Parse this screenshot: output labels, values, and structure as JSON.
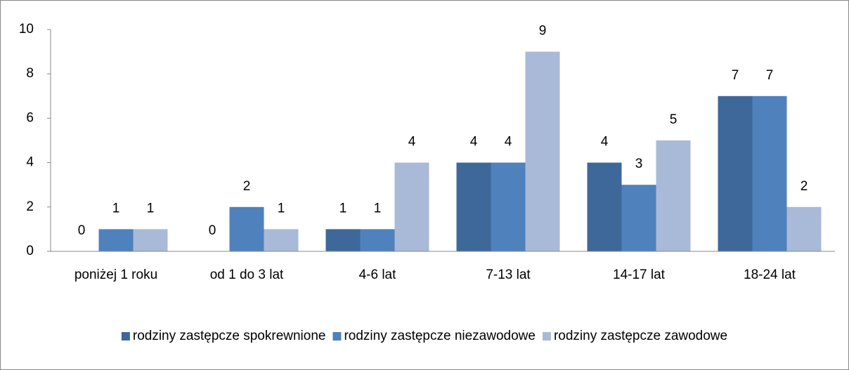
{
  "chart_data": {
    "type": "bar",
    "categories": [
      "poniżej 1 roku",
      "od 1 do 3 lat",
      "4-6 lat",
      "7-13 lat",
      "14-17 lat",
      "18-24 lat"
    ],
    "series": [
      {
        "name": "rodziny zastępcze spokrewnione",
        "color": "#3f689a",
        "values": [
          0,
          0,
          1,
          4,
          4,
          7
        ]
      },
      {
        "name": "rodziny zastępcze niezawodowe",
        "color": "#4f81bd",
        "values": [
          1,
          2,
          1,
          4,
          3,
          7
        ]
      },
      {
        "name": "rodziny zastępcze zawodowe",
        "color": "#a9bad8",
        "values": [
          1,
          1,
          4,
          9,
          5,
          2
        ]
      }
    ],
    "ylim": [
      0,
      10
    ],
    "yticks": [
      0,
      2,
      4,
      6,
      8,
      10
    ],
    "grid": false,
    "legend": "bottom"
  }
}
